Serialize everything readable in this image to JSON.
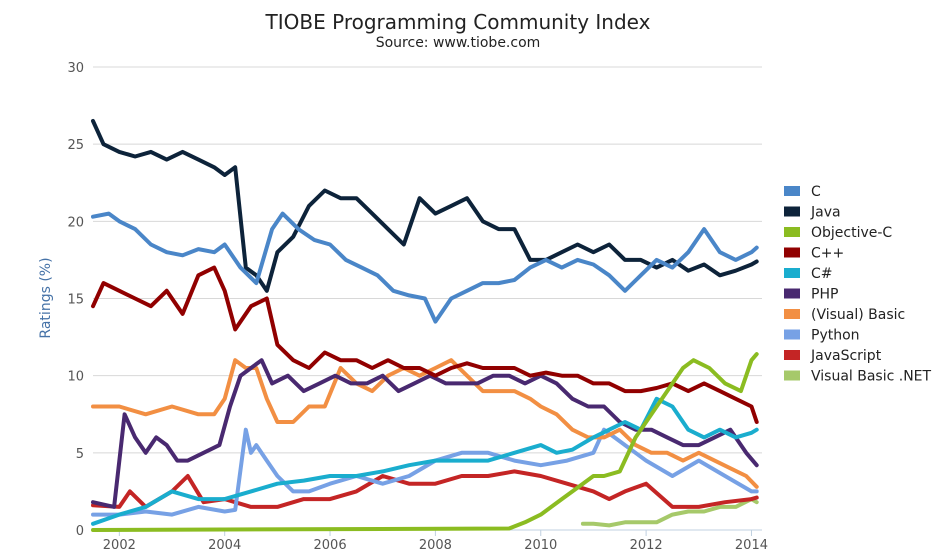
{
  "chart_data": {
    "type": "line",
    "title": "TIOBE Programming Community Index",
    "subtitle": "Source: www.tiobe.com",
    "xlabel": "",
    "ylabel": "Ratings (%)",
    "xlim": [
      2001.5,
      2014.2
    ],
    "ylim": [
      0,
      30
    ],
    "x_ticks": [
      "2002",
      "2004",
      "2006",
      "2008",
      "2010",
      "2012",
      "2014"
    ],
    "y_ticks": [
      "0",
      "5",
      "10",
      "15",
      "20",
      "25",
      "30"
    ],
    "grid": true,
    "legend": "right",
    "series": [
      {
        "name": "C",
        "color": "#4a86c8",
        "x": [
          2001.5,
          2001.8,
          2002.0,
          2002.3,
          2002.6,
          2002.9,
          2003.2,
          2003.5,
          2003.8,
          2004.0,
          2004.3,
          2004.6,
          2004.9,
          2005.1,
          2005.4,
          2005.7,
          2006.0,
          2006.3,
          2006.6,
          2006.9,
          2007.2,
          2007.5,
          2007.8,
          2008.0,
          2008.3,
          2008.6,
          2008.9,
          2009.2,
          2009.5,
          2009.8,
          2010.1,
          2010.4,
          2010.7,
          2011.0,
          2011.3,
          2011.6,
          2011.9,
          2012.2,
          2012.5,
          2012.8,
          2013.1,
          2013.4,
          2013.7,
          2014.0,
          2014.1
        ],
        "y": [
          20.3,
          20.5,
          20.0,
          19.5,
          18.5,
          18.0,
          17.8,
          18.2,
          18.0,
          18.5,
          17.0,
          16.0,
          19.5,
          20.5,
          19.5,
          18.8,
          18.5,
          17.5,
          17.0,
          16.5,
          15.5,
          15.2,
          15.0,
          13.5,
          15.0,
          15.5,
          16.0,
          16.0,
          16.2,
          17.0,
          17.5,
          17.0,
          17.5,
          17.2,
          16.5,
          15.5,
          16.5,
          17.5,
          17.0,
          18.0,
          19.5,
          18.0,
          17.5,
          18.0,
          18.3
        ]
      },
      {
        "name": "Java",
        "color": "#0d233a",
        "x": [
          2001.5,
          2001.7,
          2002.0,
          2002.3,
          2002.6,
          2002.9,
          2003.2,
          2003.5,
          2003.8,
          2004.0,
          2004.2,
          2004.4,
          2004.6,
          2004.8,
          2005.0,
          2005.3,
          2005.6,
          2005.9,
          2006.2,
          2006.5,
          2006.8,
          2007.1,
          2007.4,
          2007.7,
          2008.0,
          2008.3,
          2008.6,
          2008.9,
          2009.2,
          2009.5,
          2009.8,
          2010.1,
          2010.4,
          2010.7,
          2011.0,
          2011.3,
          2011.6,
          2011.9,
          2012.2,
          2012.5,
          2012.8,
          2013.1,
          2013.4,
          2013.7,
          2014.0,
          2014.1
        ],
        "y": [
          26.5,
          25.0,
          24.5,
          24.2,
          24.5,
          24.0,
          24.5,
          24.0,
          23.5,
          23.0,
          23.5,
          17.0,
          16.5,
          15.5,
          18.0,
          19.0,
          21.0,
          22.0,
          21.5,
          21.5,
          20.5,
          19.5,
          18.5,
          21.5,
          20.5,
          21.0,
          21.5,
          20.0,
          19.5,
          19.5,
          17.5,
          17.5,
          18.0,
          18.5,
          18.0,
          18.5,
          17.5,
          17.5,
          17.0,
          17.5,
          16.8,
          17.2,
          16.5,
          16.8,
          17.2,
          17.4
        ]
      },
      {
        "name": "Objective-C",
        "color": "#8bbc21",
        "x": [
          2001.5,
          2009.4,
          2009.7,
          2010.0,
          2010.4,
          2010.8,
          2011.0,
          2011.2,
          2011.5,
          2011.8,
          2012.1,
          2012.4,
          2012.7,
          2012.9,
          2013.2,
          2013.5,
          2013.8,
          2014.0,
          2014.1
        ],
        "y": [
          0.0,
          0.1,
          0.5,
          1.0,
          2.0,
          3.0,
          3.5,
          3.5,
          3.8,
          6.0,
          7.5,
          9.0,
          10.5,
          11.0,
          10.5,
          9.5,
          9.0,
          11.0,
          11.4
        ]
      },
      {
        "name": "C++",
        "color": "#910000",
        "x": [
          2001.5,
          2001.7,
          2002.0,
          2002.3,
          2002.6,
          2002.9,
          2003.2,
          2003.5,
          2003.8,
          2004.0,
          2004.2,
          2004.5,
          2004.8,
          2005.0,
          2005.3,
          2005.6,
          2005.9,
          2006.2,
          2006.5,
          2006.8,
          2007.1,
          2007.4,
          2007.7,
          2008.0,
          2008.3,
          2008.6,
          2008.9,
          2009.2,
          2009.5,
          2009.8,
          2010.1,
          2010.4,
          2010.7,
          2011.0,
          2011.3,
          2011.6,
          2011.9,
          2012.2,
          2012.5,
          2012.8,
          2013.1,
          2013.4,
          2013.7,
          2014.0,
          2014.1
        ],
        "y": [
          14.5,
          16.0,
          15.5,
          15.0,
          14.5,
          15.5,
          14.0,
          16.5,
          17.0,
          15.5,
          13.0,
          14.5,
          15.0,
          12.0,
          11.0,
          10.5,
          11.5,
          11.0,
          11.0,
          10.5,
          11.0,
          10.5,
          10.5,
          10.0,
          10.5,
          10.8,
          10.5,
          10.5,
          10.5,
          10.0,
          10.2,
          10.0,
          10.0,
          9.5,
          9.5,
          9.0,
          9.0,
          9.2,
          9.5,
          9.0,
          9.5,
          9.0,
          8.5,
          8.0,
          7.0
        ]
      },
      {
        "name": "C#",
        "color": "#1aadce",
        "x": [
          2001.5,
          2002.0,
          2002.5,
          2003.0,
          2003.5,
          2004.0,
          2004.5,
          2005.0,
          2005.5,
          2006.0,
          2006.5,
          2007.0,
          2007.5,
          2008.0,
          2008.5,
          2009.0,
          2009.5,
          2010.0,
          2010.3,
          2010.6,
          2011.0,
          2011.3,
          2011.6,
          2011.9,
          2012.2,
          2012.5,
          2012.8,
          2013.1,
          2013.4,
          2013.7,
          2014.0,
          2014.1
        ],
        "y": [
          0.4,
          1.0,
          1.5,
          2.5,
          2.0,
          2.0,
          2.5,
          3.0,
          3.2,
          3.5,
          3.5,
          3.8,
          4.2,
          4.5,
          4.5,
          4.5,
          5.0,
          5.5,
          5.0,
          5.2,
          6.0,
          6.5,
          7.0,
          6.5,
          8.5,
          8.0,
          6.5,
          6.0,
          6.5,
          6.0,
          6.3,
          6.5
        ]
      },
      {
        "name": "PHP",
        "color": "#492970",
        "x": [
          2001.5,
          2001.9,
          2002.1,
          2002.3,
          2002.5,
          2002.7,
          2002.9,
          2003.1,
          2003.3,
          2003.6,
          2003.9,
          2004.1,
          2004.3,
          2004.5,
          2004.7,
          2004.9,
          2005.2,
          2005.5,
          2005.8,
          2006.1,
          2006.4,
          2006.7,
          2007.0,
          2007.3,
          2007.6,
          2007.9,
          2008.2,
          2008.5,
          2008.8,
          2009.1,
          2009.4,
          2009.7,
          2010.0,
          2010.3,
          2010.6,
          2010.9,
          2011.2,
          2011.5,
          2011.8,
          2012.1,
          2012.4,
          2012.7,
          2013.0,
          2013.3,
          2013.6,
          2013.9,
          2014.1
        ],
        "y": [
          1.8,
          1.5,
          7.5,
          6.0,
          5.0,
          6.0,
          5.5,
          4.5,
          4.5,
          5.0,
          5.5,
          8.0,
          10.0,
          10.5,
          11.0,
          9.5,
          10.0,
          9.0,
          9.5,
          10.0,
          9.5,
          9.5,
          10.0,
          9.0,
          9.5,
          10.0,
          9.5,
          9.5,
          9.5,
          10.0,
          10.0,
          9.5,
          10.0,
          9.5,
          8.5,
          8.0,
          8.0,
          7.0,
          6.5,
          6.5,
          6.0,
          5.5,
          5.5,
          6.0,
          6.5,
          5.0,
          4.2
        ]
      },
      {
        "name": "(Visual) Basic",
        "color": "#f28f43",
        "x": [
          2001.5,
          2002.0,
          2002.5,
          2003.0,
          2003.5,
          2003.8,
          2004.0,
          2004.2,
          2004.4,
          2004.6,
          2004.8,
          2005.0,
          2005.3,
          2005.6,
          2005.9,
          2006.2,
          2006.5,
          2006.8,
          2007.1,
          2007.4,
          2007.7,
          2008.0,
          2008.3,
          2008.6,
          2008.9,
          2009.2,
          2009.5,
          2009.8,
          2010.0,
          2010.3,
          2010.6,
          2010.9,
          2011.2,
          2011.5,
          2011.8,
          2012.1,
          2012.4,
          2012.7,
          2013.0,
          2013.3,
          2013.6,
          2013.9,
          2014.1
        ],
        "y": [
          8.0,
          8.0,
          7.5,
          8.0,
          7.5,
          7.5,
          8.5,
          11.0,
          10.5,
          10.5,
          8.5,
          7.0,
          7.0,
          8.0,
          8.0,
          10.5,
          9.5,
          9.0,
          10.0,
          10.5,
          10.0,
          10.5,
          11.0,
          10.0,
          9.0,
          9.0,
          9.0,
          8.5,
          8.0,
          7.5,
          6.5,
          6.0,
          6.0,
          6.5,
          5.5,
          5.0,
          5.0,
          4.5,
          5.0,
          4.5,
          4.0,
          3.5,
          2.8
        ]
      },
      {
        "name": "Python",
        "color": "#77a1e5",
        "x": [
          2001.5,
          2002.0,
          2002.5,
          2003.0,
          2003.5,
          2004.0,
          2004.2,
          2004.4,
          2004.5,
          2004.6,
          2004.8,
          2005.0,
          2005.3,
          2005.6,
          2006.0,
          2006.5,
          2007.0,
          2007.5,
          2008.0,
          2008.5,
          2009.0,
          2009.5,
          2010.0,
          2010.5,
          2011.0,
          2011.2,
          2011.4,
          2011.6,
          2012.0,
          2012.5,
          2013.0,
          2013.5,
          2014.0,
          2014.1
        ],
        "y": [
          1.0,
          1.0,
          1.2,
          1.0,
          1.5,
          1.2,
          1.3,
          6.5,
          5.0,
          5.5,
          4.5,
          3.5,
          2.5,
          2.5,
          3.0,
          3.5,
          3.0,
          3.5,
          4.5,
          5.0,
          5.0,
          4.5,
          4.2,
          4.5,
          5.0,
          6.5,
          6.0,
          5.5,
          4.5,
          3.5,
          4.5,
          3.5,
          2.5,
          2.5
        ]
      },
      {
        "name": "JavaScript",
        "color": "#c42525",
        "x": [
          2001.5,
          2002.0,
          2002.2,
          2002.5,
          2003.0,
          2003.3,
          2003.6,
          2004.0,
          2004.5,
          2005.0,
          2005.5,
          2006.0,
          2006.5,
          2007.0,
          2007.5,
          2008.0,
          2008.5,
          2009.0,
          2009.5,
          2010.0,
          2010.5,
          2011.0,
          2011.3,
          2011.6,
          2012.0,
          2012.5,
          2013.0,
          2013.5,
          2014.0,
          2014.1
        ],
        "y": [
          1.6,
          1.5,
          2.5,
          1.5,
          2.5,
          3.5,
          1.8,
          2.0,
          1.5,
          1.5,
          2.0,
          2.0,
          2.5,
          3.5,
          3.0,
          3.0,
          3.5,
          3.5,
          3.8,
          3.5,
          3.0,
          2.5,
          2.0,
          2.5,
          3.0,
          1.5,
          1.5,
          1.8,
          2.0,
          2.1
        ]
      },
      {
        "name": "Visual Basic .NET",
        "color": "#a6c96a",
        "x": [
          2010.8,
          2011.0,
          2011.3,
          2011.6,
          2011.9,
          2012.2,
          2012.5,
          2012.8,
          2013.1,
          2013.4,
          2013.7,
          2014.0,
          2014.1
        ],
        "y": [
          0.4,
          0.4,
          0.3,
          0.5,
          0.5,
          0.5,
          1.0,
          1.2,
          1.2,
          1.5,
          1.5,
          2.0,
          1.8
        ]
      }
    ]
  }
}
